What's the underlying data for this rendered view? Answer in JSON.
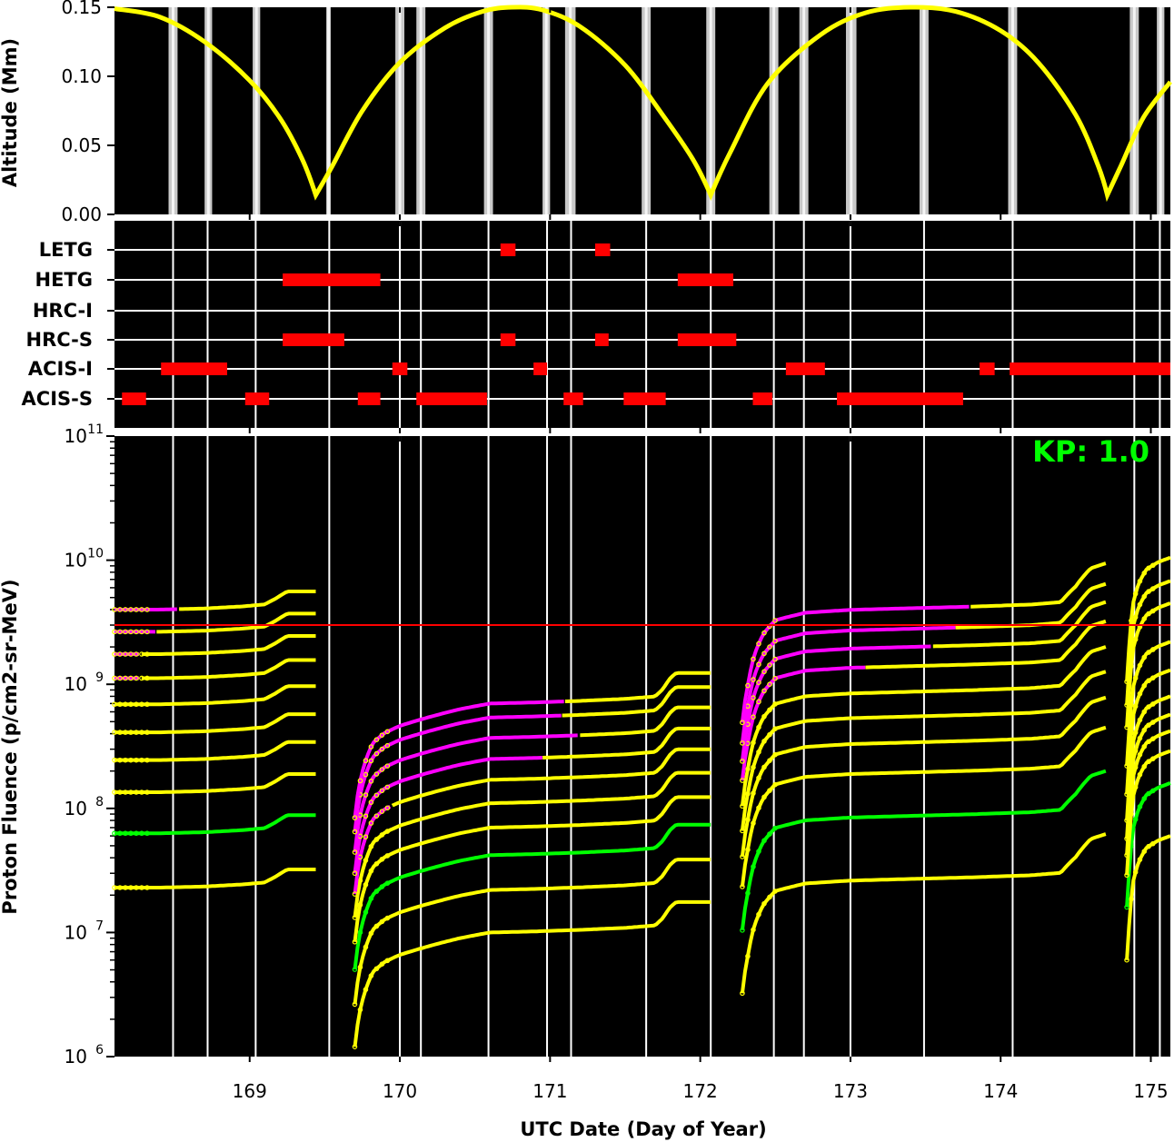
{
  "chart_data": [
    {
      "type": "line",
      "panel": "altitude",
      "ylabel": "Altitude (Mm)",
      "ylim": [
        0,
        0.15
      ],
      "yticks": [
        "0.00",
        "0.05",
        "0.10",
        "0.15"
      ],
      "xlim": [
        168.1,
        175.13
      ],
      "series": [
        {
          "color": "#ffff00",
          "x": [
            168.1,
            168.4,
            168.7,
            169.0,
            169.2,
            169.35,
            169.44,
            169.55,
            169.75,
            170.0,
            170.3,
            170.55,
            170.75,
            170.95,
            171.2,
            171.5,
            171.75,
            171.95,
            172.07,
            172.2,
            172.45,
            172.8,
            173.1,
            173.4,
            173.7,
            174.0,
            174.25,
            174.5,
            174.65,
            174.71,
            174.8,
            174.95,
            175.13
          ],
          "y": [
            0.149,
            0.143,
            0.125,
            0.097,
            0.07,
            0.04,
            0.014,
            0.035,
            0.075,
            0.11,
            0.135,
            0.147,
            0.15,
            0.148,
            0.136,
            0.108,
            0.072,
            0.04,
            0.014,
            0.045,
            0.095,
            0.13,
            0.146,
            0.15,
            0.147,
            0.133,
            0.11,
            0.072,
            0.035,
            0.014,
            0.035,
            0.07,
            0.096
          ]
        }
      ],
      "shaded_bands": [
        [
          168.46,
          168.52
        ],
        [
          168.7,
          168.75
        ],
        [
          169.02,
          169.07
        ],
        [
          169.51,
          169.54
        ],
        [
          169.97,
          170.03
        ],
        [
          170.11,
          170.17
        ],
        [
          170.56,
          170.62
        ],
        [
          170.95,
          171.0
        ],
        [
          171.1,
          171.17
        ],
        [
          171.61,
          171.67
        ],
        [
          172.04,
          172.1
        ],
        [
          172.46,
          172.52
        ],
        [
          172.66,
          172.72
        ],
        [
          172.97,
          173.04
        ],
        [
          173.46,
          173.52
        ],
        [
          174.05,
          174.11
        ],
        [
          174.86,
          174.92
        ],
        [
          175.04,
          175.09
        ]
      ]
    },
    {
      "type": "timeline",
      "panel": "instruments",
      "categories": [
        "LETG",
        "HETG",
        "HRC-I",
        "HRC-S",
        "ACIS-I",
        "ACIS-S"
      ],
      "xlim": [
        168.1,
        175.13
      ],
      "bar_color": "#ff0000",
      "intervals": {
        "LETG": [
          [
            170.67,
            170.77
          ],
          [
            171.3,
            171.4
          ]
        ],
        "HETG": [
          [
            169.22,
            169.87
          ],
          [
            171.85,
            172.22
          ]
        ],
        "HRC-I": [],
        "HRC-S": [
          [
            169.22,
            169.63
          ],
          [
            170.67,
            170.77
          ],
          [
            171.3,
            171.39
          ],
          [
            171.85,
            172.24
          ]
        ],
        "ACIS-I": [
          [
            168.41,
            168.85
          ],
          [
            169.95,
            170.05
          ],
          [
            170.89,
            170.98
          ],
          [
            172.57,
            172.83
          ],
          [
            173.86,
            173.96
          ],
          [
            174.06,
            175.13
          ]
        ],
        "ACIS-S": [
          [
            168.15,
            168.31
          ],
          [
            168.97,
            169.13
          ],
          [
            169.72,
            169.87
          ],
          [
            170.11,
            170.58
          ],
          [
            171.09,
            171.22
          ],
          [
            171.49,
            171.77
          ],
          [
            172.35,
            172.48
          ],
          [
            172.91,
            173.75
          ]
        ]
      },
      "vertical_lines": [
        168.49,
        168.72,
        169.04,
        169.53,
        170.0,
        170.14,
        170.59,
        170.98,
        171.14,
        171.64,
        172.07,
        172.49,
        172.69,
        173.0,
        173.49,
        174.08,
        174.89,
        175.06
      ]
    },
    {
      "type": "line",
      "panel": "proton-fluence",
      "ylabel": "Proton Fluence (p/cm2-sr-MeV)",
      "xlabel": "UTC Date (Day of Year)",
      "yscale": "log",
      "ylim": [
        1000000,
        100000000000
      ],
      "ytick_bases": [
        "10",
        "10",
        "10",
        "10",
        "10",
        "10"
      ],
      "ytick_exponents": [
        "6",
        "7",
        "8",
        "9",
        "10",
        "11"
      ],
      "xlim": [
        168.1,
        175.13
      ],
      "xticks": [
        "169",
        "170",
        "171",
        "172",
        "173",
        "174",
        "175"
      ],
      "threshold": 3000000000,
      "threshold_color": "#ff0000",
      "annotation": "KP: 1.0",
      "annotation_color": "#00ff00",
      "vertical_lines": [
        168.49,
        168.72,
        169.04,
        169.53,
        170.0,
        170.14,
        170.59,
        170.98,
        171.14,
        171.64,
        172.07,
        172.49,
        172.69,
        173.0,
        173.49,
        174.08,
        174.89,
        175.06
      ],
      "orbits": [
        {
          "x": [
            168.1,
            168.4,
            168.7,
            168.95,
            169.1,
            169.17,
            169.25,
            169.44
          ],
          "f": [
            1.0,
            1.0,
            1.02,
            1.06,
            1.1,
            1.22,
            1.4,
            1.4
          ],
          "start_values": [
            23000000,
            63000000,
            135000000,
            245000000,
            410000000,
            690000000,
            1120000000,
            1750000000,
            2650000000,
            4000000000
          ],
          "magenta_until": [
            null,
            null,
            null,
            null,
            null,
            null,
            168.28,
            168.28,
            168.38,
            168.53
          ],
          "green": [
            false,
            true,
            false,
            false,
            false,
            false,
            false,
            false,
            false,
            false
          ]
        },
        {
          "x": [
            169.7,
            169.73,
            169.77,
            169.82,
            169.9,
            170.0,
            170.2,
            170.4,
            170.6,
            170.9,
            171.2,
            171.5,
            171.7,
            171.75,
            171.8,
            171.84,
            172.07
          ],
          "f": [
            0.12,
            0.22,
            0.34,
            0.48,
            0.58,
            0.66,
            0.78,
            0.9,
            1.0,
            1.02,
            1.05,
            1.09,
            1.14,
            1.3,
            1.6,
            1.76,
            1.76
          ],
          "start_values": [
            10000000,
            22000000,
            42000000,
            70000000,
            110000000,
            170000000,
            250000000,
            370000000,
            540000000,
            700000000
          ],
          "magenta_until": [
            null,
            null,
            null,
            null,
            null,
            169.95,
            170.95,
            171.2,
            171.08,
            171.1
          ],
          "green": [
            false,
            false,
            true,
            false,
            false,
            false,
            false,
            false,
            false,
            false
          ]
        },
        {
          "x": [
            172.28,
            172.32,
            172.36,
            172.42,
            172.5,
            172.7,
            173.0,
            173.4,
            173.8,
            174.2,
            174.4,
            174.5,
            174.6,
            174.7
          ],
          "f": [
            0.12,
            0.25,
            0.42,
            0.62,
            0.8,
            0.92,
            0.97,
            1.0,
            1.03,
            1.07,
            1.12,
            1.5,
            2.1,
            2.3
          ],
          "start_values": [
            27000000,
            87000000,
            195000000,
            340000000,
            550000000,
            870000000,
            1400000000,
            2000000000,
            2800000000,
            4100000000
          ],
          "magenta_until": [
            null,
            null,
            null,
            null,
            null,
            null,
            173.1,
            173.55,
            173.7,
            173.8
          ],
          "green": [
            false,
            true,
            false,
            false,
            false,
            false,
            false,
            false,
            false,
            false
          ]
        },
        {
          "x": [
            174.84,
            174.86,
            174.88,
            174.92,
            174.97,
            175.05,
            175.13
          ],
          "f": [
            0.1,
            0.22,
            0.42,
            0.62,
            0.8,
            0.92,
            1.0
          ],
          "start_values": [
            60000000,
            160000000,
            290000000,
            420000000,
            570000000,
            800000000,
            1300000000,
            2200000000,
            4500000000,
            6800000000,
            10500000000
          ],
          "magenta_until": [
            null,
            null,
            null,
            null,
            null,
            null,
            null,
            null,
            null,
            null,
            null
          ],
          "green": [
            false,
            true,
            false,
            false,
            false,
            false,
            false,
            false,
            false,
            false,
            false
          ]
        }
      ]
    }
  ]
}
